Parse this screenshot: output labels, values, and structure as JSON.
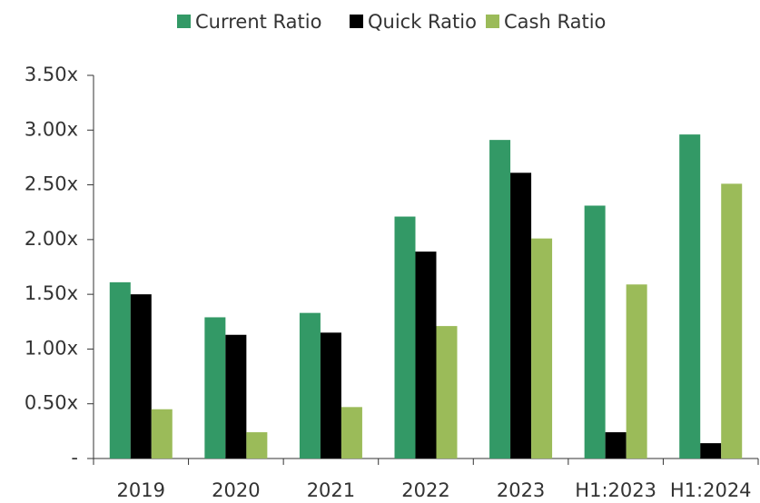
{
  "chart_data": {
    "type": "bar",
    "categories": [
      "2019",
      "2020",
      "2021",
      "2022",
      "2023",
      "H1:2023",
      "H1:2024"
    ],
    "series": [
      {
        "name": "Current Ratio",
        "color": "#339966",
        "values": [
          1.61,
          1.29,
          1.33,
          2.21,
          2.91,
          2.31,
          2.96
        ]
      },
      {
        "name": "Quick Ratio",
        "color": "#000000",
        "values": [
          1.5,
          1.13,
          1.15,
          1.89,
          2.61,
          0.24,
          0.14
        ]
      },
      {
        "name": "Cash Ratio",
        "color": "#9bbb59",
        "values": [
          0.45,
          0.24,
          0.47,
          1.21,
          2.01,
          1.59,
          2.51
        ]
      }
    ],
    "ylim": [
      0,
      3.5
    ],
    "yticks": [
      {
        "value": 0,
        "label": "-"
      },
      {
        "value": 0.5,
        "label": "0.50x"
      },
      {
        "value": 1,
        "label": "1.00x"
      },
      {
        "value": 1.5,
        "label": "1.50x"
      },
      {
        "value": 2,
        "label": "2.00x"
      },
      {
        "value": 2.5,
        "label": "2.50x"
      },
      {
        "value": 3,
        "label": "3.00x"
      },
      {
        "value": 3.5,
        "label": "3.50x"
      }
    ],
    "legend": "top"
  }
}
